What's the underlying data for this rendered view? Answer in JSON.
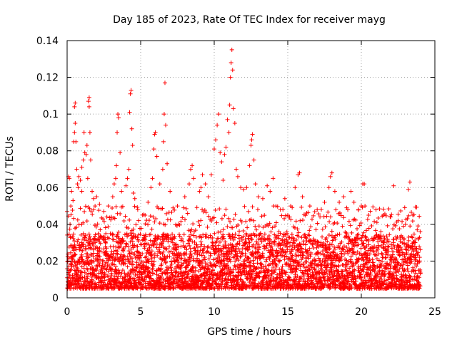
{
  "chart_data": {
    "type": "scatter",
    "title": "Day 185 of 2023, Rate Of TEC Index for receiver mayg",
    "xlabel": "GPS time / hours",
    "ylabel": "ROTI / TECUs",
    "xlim": [
      0,
      25
    ],
    "ylim": [
      0,
      0.14
    ],
    "xticks": [
      0,
      5,
      10,
      15,
      20,
      25
    ],
    "xtick_labels": [
      "0",
      "5",
      "10",
      "15",
      "20",
      "25"
    ],
    "yticks": [
      0,
      0.02,
      0.04,
      0.06,
      0.08,
      0.1,
      0.12,
      0.14
    ],
    "ytick_labels": [
      "0",
      "0.02",
      "0.04",
      "0.06",
      "0.08",
      "0.1",
      "0.12",
      "0.14"
    ],
    "grid": true,
    "grid_style": "dotted",
    "marker": "+",
    "marker_color": "#ff0000",
    "series": [
      {
        "points": [
          [
            0.1,
            0.066
          ],
          [
            0.15,
            0.065
          ],
          [
            0.2,
            0.04
          ],
          [
            0.25,
            0.05
          ],
          [
            0.3,
            0.058
          ],
          [
            0.4,
            0.053
          ],
          [
            0.45,
            0.085
          ],
          [
            0.5,
            0.09
          ],
          [
            0.5,
            0.104
          ],
          [
            0.55,
            0.106
          ],
          [
            0.55,
            0.095
          ],
          [
            0.6,
            0.085
          ],
          [
            0.65,
            0.07
          ],
          [
            0.7,
            0.062
          ],
          [
            0.75,
            0.06
          ],
          [
            0.8,
            0.066
          ],
          [
            0.9,
            0.064
          ],
          [
            1.0,
            0.058
          ],
          [
            1.0,
            0.071
          ],
          [
            1.1,
            0.075
          ],
          [
            1.15,
            0.09
          ],
          [
            1.2,
            0.079
          ],
          [
            1.3,
            0.078
          ],
          [
            1.35,
            0.083
          ],
          [
            1.4,
            0.065
          ],
          [
            1.45,
            0.107
          ],
          [
            1.5,
            0.104
          ],
          [
            1.5,
            0.109
          ],
          [
            1.55,
            0.09
          ],
          [
            1.6,
            0.075
          ],
          [
            1.7,
            0.058
          ],
          [
            1.8,
            0.054
          ],
          [
            1.9,
            0.05
          ],
          [
            2.0,
            0.055
          ],
          [
            2.2,
            0.051
          ],
          [
            2.5,
            0.047
          ],
          [
            2.8,
            0.05
          ],
          [
            3.0,
            0.044
          ],
          [
            3.1,
            0.055
          ],
          [
            3.2,
            0.062
          ],
          [
            3.3,
            0.065
          ],
          [
            3.35,
            0.072
          ],
          [
            3.4,
            0.09
          ],
          [
            3.45,
            0.1
          ],
          [
            3.5,
            0.098
          ],
          [
            3.6,
            0.079
          ],
          [
            3.7,
            0.058
          ],
          [
            4.0,
            0.061
          ],
          [
            4.1,
            0.065
          ],
          [
            4.2,
            0.07
          ],
          [
            4.25,
            0.101
          ],
          [
            4.3,
            0.111
          ],
          [
            4.35,
            0.113
          ],
          [
            4.4,
            0.092
          ],
          [
            4.45,
            0.083
          ],
          [
            4.5,
            0.057
          ],
          [
            4.6,
            0.054
          ],
          [
            4.8,
            0.048
          ],
          [
            5.3,
            0.045
          ],
          [
            5.5,
            0.052
          ],
          [
            5.7,
            0.06
          ],
          [
            5.8,
            0.065
          ],
          [
            5.9,
            0.081
          ],
          [
            5.95,
            0.089
          ],
          [
            6.0,
            0.09
          ],
          [
            6.1,
            0.077
          ],
          [
            6.3,
            0.062
          ],
          [
            6.5,
            0.07
          ],
          [
            6.55,
            0.085
          ],
          [
            6.6,
            0.1
          ],
          [
            6.65,
            0.117
          ],
          [
            6.7,
            0.094
          ],
          [
            6.8,
            0.073
          ],
          [
            7.0,
            0.058
          ],
          [
            7.5,
            0.05
          ],
          [
            8.0,
            0.055
          ],
          [
            8.3,
            0.062
          ],
          [
            8.4,
            0.07
          ],
          [
            8.5,
            0.072
          ],
          [
            8.6,
            0.065
          ],
          [
            9.0,
            0.058
          ],
          [
            9.1,
            0.06
          ],
          [
            9.2,
            0.067
          ],
          [
            9.4,
            0.062
          ],
          [
            9.6,
            0.055
          ],
          [
            9.8,
            0.067
          ],
          [
            10.0,
            0.081
          ],
          [
            10.1,
            0.086
          ],
          [
            10.2,
            0.094
          ],
          [
            10.3,
            0.1
          ],
          [
            10.4,
            0.079
          ],
          [
            10.5,
            0.074
          ],
          [
            10.6,
            0.064
          ],
          [
            10.7,
            0.078
          ],
          [
            10.8,
            0.082
          ],
          [
            10.9,
            0.097
          ],
          [
            11.0,
            0.09
          ],
          [
            11.05,
            0.105
          ],
          [
            11.1,
            0.12
          ],
          [
            11.15,
            0.128
          ],
          [
            11.2,
            0.135
          ],
          [
            11.25,
            0.124
          ],
          [
            11.3,
            0.103
          ],
          [
            11.4,
            0.095
          ],
          [
            11.5,
            0.07
          ],
          [
            11.6,
            0.066
          ],
          [
            11.8,
            0.06
          ],
          [
            12.0,
            0.059
          ],
          [
            12.2,
            0.06
          ],
          [
            12.4,
            0.072
          ],
          [
            12.5,
            0.083
          ],
          [
            12.55,
            0.086
          ],
          [
            12.6,
            0.089
          ],
          [
            12.7,
            0.075
          ],
          [
            12.8,
            0.062
          ],
          [
            13.0,
            0.055
          ],
          [
            13.3,
            0.054
          ],
          [
            13.6,
            0.061
          ],
          [
            13.8,
            0.058
          ],
          [
            14.0,
            0.065
          ],
          [
            14.2,
            0.05
          ],
          [
            14.5,
            0.048
          ],
          [
            14.8,
            0.054
          ],
          [
            15.0,
            0.045
          ],
          [
            15.2,
            0.05
          ],
          [
            15.5,
            0.06
          ],
          [
            15.7,
            0.067
          ],
          [
            15.8,
            0.068
          ],
          [
            16.0,
            0.055
          ],
          [
            16.5,
            0.05
          ],
          [
            17.0,
            0.048
          ],
          [
            17.5,
            0.052
          ],
          [
            17.8,
            0.06
          ],
          [
            17.9,
            0.066
          ],
          [
            18.0,
            0.068
          ],
          [
            18.2,
            0.058
          ],
          [
            18.5,
            0.052
          ],
          [
            18.8,
            0.055
          ],
          [
            19.0,
            0.049
          ],
          [
            19.3,
            0.058
          ],
          [
            19.5,
            0.052
          ],
          [
            19.8,
            0.048
          ],
          [
            20.0,
            0.05
          ],
          [
            20.1,
            0.062
          ],
          [
            20.2,
            0.062
          ],
          [
            20.5,
            0.045
          ],
          [
            21.0,
            0.048
          ],
          [
            21.5,
            0.045
          ],
          [
            22.0,
            0.044
          ],
          [
            22.2,
            0.061
          ],
          [
            22.5,
            0.042
          ],
          [
            23.0,
            0.04
          ],
          [
            23.2,
            0.059
          ],
          [
            23.3,
            0.063
          ],
          [
            23.5,
            0.045
          ],
          [
            23.8,
            0.037
          ],
          [
            24.0,
            0.036
          ]
        ],
        "baseline_band": {
          "y_low": 0.005,
          "y_high": 0.035,
          "x_from": 0,
          "x_to": 24
        }
      }
    ]
  }
}
